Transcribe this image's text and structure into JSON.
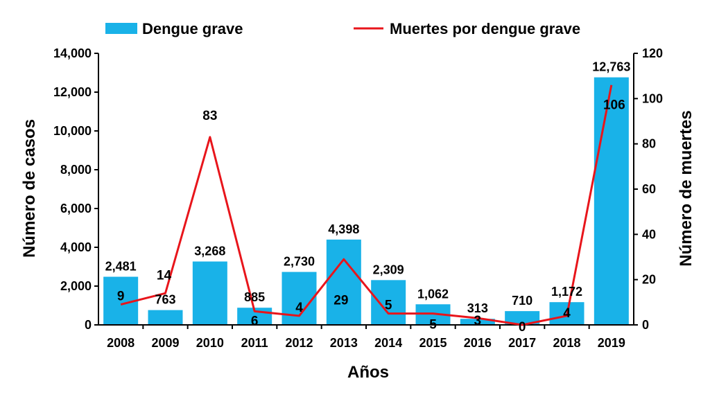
{
  "chart_data": {
    "type": "bar",
    "categories": [
      "2008",
      "2009",
      "2010",
      "2011",
      "2012",
      "2013",
      "2014",
      "2015",
      "2016",
      "2017",
      "2018",
      "2019"
    ],
    "series": [
      {
        "name": "Dengue grave",
        "type": "bar",
        "axis": "left",
        "color": "#19b2e8",
        "values": [
          2481,
          763,
          3268,
          885,
          2730,
          4398,
          2309,
          1062,
          313,
          710,
          1172,
          12763
        ],
        "labels": [
          "2,481",
          "763",
          "3,268",
          "885",
          "2,730",
          "4,398",
          "2,309",
          "1,062",
          "313",
          "710",
          "1,172",
          "12,763"
        ]
      },
      {
        "name": "Muertes por dengue grave",
        "type": "line",
        "axis": "right",
        "color": "#e8151b",
        "values": [
          9,
          14,
          83,
          6,
          4,
          29,
          5,
          5,
          3,
          0,
          4,
          106
        ],
        "labels": [
          "9",
          "14",
          "83",
          "6",
          "4",
          "29",
          "5",
          "5",
          "3",
          "0",
          "4",
          "106"
        ]
      }
    ],
    "xlabel": "Años",
    "ylabel": "Número de casos",
    "y2label": "Número de muertes",
    "ylim": [
      0,
      14000
    ],
    "y2lim": [
      0,
      120
    ],
    "yticks": [
      "0",
      "2,000",
      "4,000",
      "6,000",
      "8,000",
      "10,000",
      "12,000",
      "14,000"
    ],
    "y2ticks": [
      "0",
      "20",
      "40",
      "60",
      "80",
      "100",
      "120"
    ],
    "grid": false,
    "legend_position": "top"
  }
}
